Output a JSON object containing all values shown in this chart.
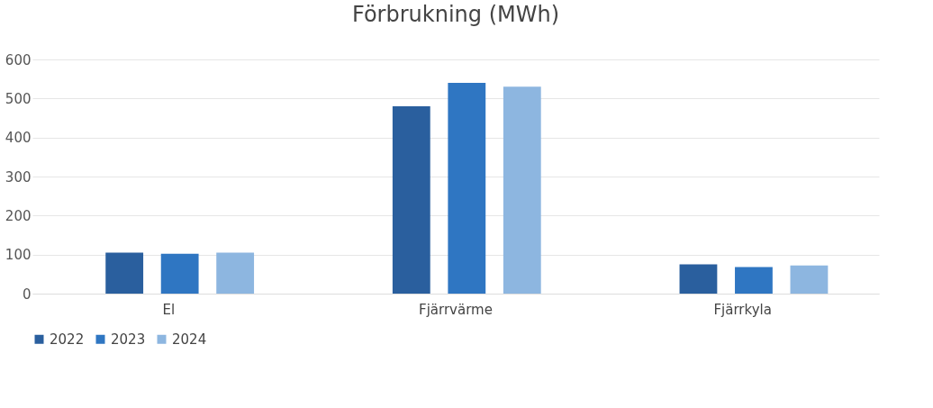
{
  "chart_data": {
    "type": "bar",
    "title": "Förbrukning (MWh)",
    "categories": [
      "El",
      "Fjärrvärme",
      "Fjärrkyla"
    ],
    "series": [
      {
        "name": "2022",
        "color": "#2a5f9e",
        "values": [
          105,
          480,
          75
        ]
      },
      {
        "name": "2023",
        "color": "#2f76c2",
        "values": [
          102,
          540,
          68
        ]
      },
      {
        "name": "2024",
        "color": "#8db6e0",
        "values": [
          105,
          530,
          72
        ]
      }
    ],
    "ylim": [
      0,
      600
    ],
    "yticks": [
      0,
      100,
      200,
      300,
      400,
      500,
      600
    ],
    "grid": "y",
    "legend": "bottom"
  }
}
